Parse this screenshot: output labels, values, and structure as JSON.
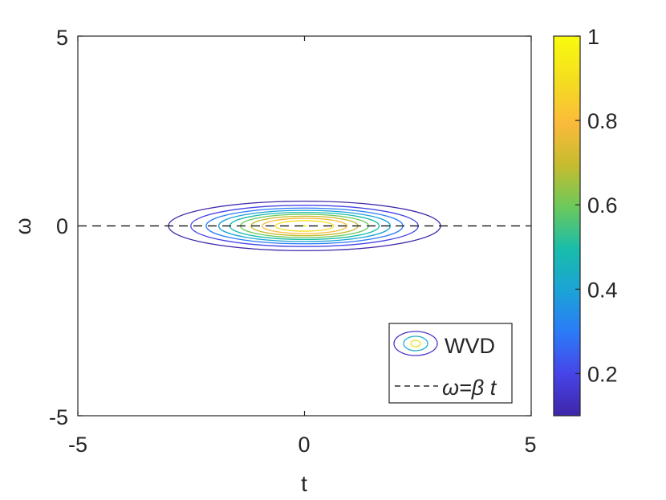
{
  "chart_data": {
    "type": "contour",
    "title": "",
    "xlabel": "t",
    "ylabel": "ω",
    "xlim": [
      -5,
      5
    ],
    "ylim": [
      -5,
      5
    ],
    "x_ticks": [
      "-5",
      "0",
      "5"
    ],
    "y_ticks": [
      "5",
      "0",
      "-5"
    ],
    "grid": false,
    "contour": {
      "center": [
        0,
        0
      ],
      "levels": [
        0.1,
        0.2,
        0.3,
        0.4,
        0.5,
        0.6,
        0.7,
        0.8,
        0.9,
        1.0
      ],
      "outer_extent_t": 3.0,
      "outer_extent_omega": 0.65
    },
    "reference_line": {
      "label": "ω=β t",
      "slope": 0,
      "style": "dashed",
      "color": "#000000"
    },
    "legend": {
      "placement": "bottom-right",
      "entries": [
        {
          "label": "WVD",
          "kind": "contour"
        },
        {
          "label": "ω=β t",
          "kind": "dashed"
        }
      ]
    },
    "colorbar": {
      "range": [
        0.1,
        1
      ],
      "ticks": [
        "1",
        "0.8",
        "0.6",
        "0.4",
        "0.2"
      ],
      "tick_values": [
        1,
        0.8,
        0.6,
        0.4,
        0.2
      ],
      "colormap": "parula",
      "colors": [
        "#3e26a8",
        "#4744e8",
        "#2b7bf8",
        "#1ba3d6",
        "#19bdaa",
        "#6cc95b",
        "#c6bc2e",
        "#fbba3b",
        "#f4dd20",
        "#f9fb0e"
      ]
    }
  }
}
